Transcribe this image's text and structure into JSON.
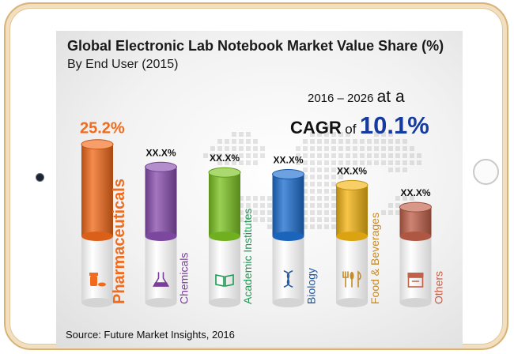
{
  "chart_data": {
    "type": "bar",
    "title": "Global Electronic Lab Notebook Market Value Share (%)",
    "subtitle": "By End User (2015)",
    "categories": [
      "Pharmaceuticals",
      "Chemicals",
      "Academic Institutes",
      "Biology",
      "Food & Beverages",
      "Others"
    ],
    "value_labels": [
      "25.2%",
      "XX.X%",
      "XX.X%",
      "XX.X%",
      "XX.X%",
      "XX.X%"
    ],
    "values": [
      25.2,
      19,
      17.5,
      17,
      14,
      8
    ],
    "ylim": [
      0,
      26
    ],
    "colors": [
      "#f26a1b",
      "#8a4fb0",
      "#7cc423",
      "#1e6fd0",
      "#f3b514",
      "#c1614a"
    ],
    "label_colors": [
      "#f26a1b",
      "#7a3f99",
      "#1f9a55",
      "#1f57a8",
      "#c58a2a",
      "#c1614a"
    ],
    "icons": [
      "pill-bottle-icon",
      "flask-icon",
      "book-icon",
      "dna-icon",
      "utensils-icon",
      "archive-box-icon"
    ]
  },
  "callout": {
    "period_prefix": "2016 – 2026",
    "period_suffix": "at a",
    "cagr_label": "CAGR",
    "cagr_of": "of",
    "cagr_value": "10.1%"
  },
  "source": "Source: Future Market Insights, 2016"
}
